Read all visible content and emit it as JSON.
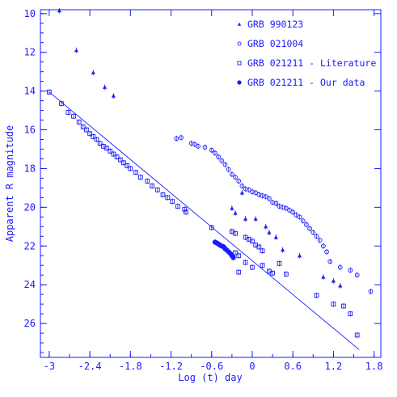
{
  "chart_data": {
    "type": "scatter",
    "xlabel": "Log (t) day",
    "ylabel": "Apparent R magnitude",
    "xlim": [
      -3.13,
      1.9
    ],
    "ylim": [
      9.8,
      27.75
    ],
    "y_inverted": true,
    "x_ticks": [
      "-3",
      "-2.4",
      "-1.8",
      "-1.2",
      "-0.6",
      "0",
      "0.6",
      "1.2",
      "1.8"
    ],
    "y_ticks": [
      "10",
      "12",
      "14",
      "16",
      "18",
      "20",
      "22",
      "24",
      "26"
    ],
    "legend_position": "top-right",
    "color": "#1a1aff",
    "fit_line": {
      "x": [
        -3.0,
        1.58
      ],
      "y": [
        14.05,
        27.35
      ]
    },
    "series": [
      {
        "name": "GRB 990123",
        "marker": "triangle",
        "points": [
          [
            -2.85,
            9.85
          ],
          [
            -2.6,
            11.9
          ],
          [
            -2.35,
            13.05
          ],
          [
            -2.18,
            13.8
          ],
          [
            -2.05,
            14.25
          ],
          [
            -0.3,
            20.05
          ],
          [
            -0.25,
            20.3
          ],
          [
            -0.15,
            19.25
          ],
          [
            -0.1,
            20.6
          ],
          [
            0.05,
            20.6
          ],
          [
            0.2,
            21.0
          ],
          [
            0.25,
            21.3
          ],
          [
            0.35,
            21.55
          ],
          [
            0.45,
            22.2
          ],
          [
            0.7,
            22.5
          ],
          [
            1.05,
            23.6
          ],
          [
            1.2,
            23.8
          ],
          [
            1.3,
            24.05
          ]
        ]
      },
      {
        "name": "GRB 021004",
        "marker": "circle-open",
        "points": [
          [
            -1.12,
            16.45
          ],
          [
            -1.05,
            16.4
          ],
          [
            -0.9,
            16.7
          ],
          [
            -0.85,
            16.75
          ],
          [
            -0.8,
            16.85
          ],
          [
            -0.7,
            16.9
          ],
          [
            -0.6,
            17.05
          ],
          [
            -0.55,
            17.2
          ],
          [
            -0.5,
            17.4
          ],
          [
            -0.45,
            17.6
          ],
          [
            -0.4,
            17.8
          ],
          [
            -0.35,
            18.05
          ],
          [
            -0.3,
            18.3
          ],
          [
            -0.25,
            18.45
          ],
          [
            -0.2,
            18.65
          ],
          [
            -0.15,
            18.9
          ],
          [
            -0.1,
            19.05
          ],
          [
            -0.05,
            19.1
          ],
          [
            0.0,
            19.2
          ],
          [
            0.05,
            19.25
          ],
          [
            0.1,
            19.35
          ],
          [
            0.15,
            19.4
          ],
          [
            0.2,
            19.45
          ],
          [
            0.25,
            19.55
          ],
          [
            0.3,
            19.75
          ],
          [
            0.35,
            19.8
          ],
          [
            0.4,
            19.95
          ],
          [
            0.45,
            20.0
          ],
          [
            0.5,
            20.05
          ],
          [
            0.55,
            20.15
          ],
          [
            0.6,
            20.25
          ],
          [
            0.65,
            20.4
          ],
          [
            0.7,
            20.5
          ],
          [
            0.75,
            20.7
          ],
          [
            0.8,
            20.9
          ],
          [
            0.85,
            21.1
          ],
          [
            0.9,
            21.3
          ],
          [
            0.95,
            21.5
          ],
          [
            1.0,
            21.7
          ],
          [
            1.05,
            22.0
          ],
          [
            1.1,
            22.3
          ],
          [
            1.15,
            22.8
          ],
          [
            1.3,
            23.1
          ],
          [
            1.45,
            23.25
          ],
          [
            1.55,
            23.5
          ],
          [
            1.75,
            24.35
          ]
        ]
      },
      {
        "name": "GRB 021211 - Literature",
        "marker": "square-open",
        "points": [
          [
            -3.0,
            14.05
          ],
          [
            -2.82,
            14.65
          ],
          [
            -2.72,
            15.1
          ],
          [
            -2.64,
            15.3
          ],
          [
            -2.56,
            15.6
          ],
          [
            -2.5,
            15.85
          ],
          [
            -2.45,
            16.0
          ],
          [
            -2.4,
            16.2
          ],
          [
            -2.35,
            16.35
          ],
          [
            -2.3,
            16.5
          ],
          [
            -2.25,
            16.7
          ],
          [
            -2.2,
            16.85
          ],
          [
            -2.15,
            16.95
          ],
          [
            -2.1,
            17.1
          ],
          [
            -2.05,
            17.25
          ],
          [
            -2.0,
            17.4
          ],
          [
            -1.95,
            17.55
          ],
          [
            -1.9,
            17.7
          ],
          [
            -1.85,
            17.85
          ],
          [
            -1.8,
            18.0
          ],
          [
            -1.72,
            18.2
          ],
          [
            -1.65,
            18.45
          ],
          [
            -1.55,
            18.65
          ],
          [
            -1.48,
            18.9
          ],
          [
            -1.4,
            19.1
          ],
          [
            -1.32,
            19.35
          ],
          [
            -1.25,
            19.5
          ],
          [
            -1.18,
            19.7
          ],
          [
            -1.1,
            19.95
          ],
          [
            -1.0,
            20.1
          ],
          [
            -0.98,
            20.25
          ],
          [
            -0.6,
            21.05
          ],
          [
            -0.3,
            21.25
          ],
          [
            -0.25,
            21.35
          ],
          [
            -0.1,
            21.55
          ],
          [
            -0.05,
            21.65
          ],
          [
            0.0,
            21.75
          ],
          [
            0.05,
            21.95
          ],
          [
            0.1,
            22.05
          ],
          [
            0.15,
            22.25
          ],
          [
            -0.25,
            22.35
          ],
          [
            -0.2,
            22.5
          ],
          [
            -0.1,
            22.85
          ],
          [
            0.0,
            23.1
          ],
          [
            0.15,
            23.0
          ],
          [
            0.25,
            23.3
          ],
          [
            0.3,
            23.4
          ],
          [
            0.5,
            23.45
          ],
          [
            0.95,
            24.55
          ],
          [
            1.2,
            25.0
          ],
          [
            1.35,
            25.1
          ],
          [
            1.45,
            25.5
          ],
          [
            1.55,
            26.6
          ],
          [
            -0.2,
            23.35
          ],
          [
            0.4,
            22.9
          ]
        ]
      },
      {
        "name": "GRB 021211 - Our data",
        "marker": "circle-filled",
        "points": [
          [
            -0.55,
            21.8
          ],
          [
            -0.52,
            21.85
          ],
          [
            -0.5,
            21.9
          ],
          [
            -0.48,
            21.95
          ],
          [
            -0.45,
            22.0
          ],
          [
            -0.42,
            22.05
          ],
          [
            -0.4,
            22.15
          ],
          [
            -0.38,
            22.2
          ],
          [
            -0.35,
            22.3
          ],
          [
            -0.32,
            22.4
          ],
          [
            -0.3,
            22.5
          ],
          [
            -0.28,
            22.6
          ]
        ]
      }
    ]
  }
}
